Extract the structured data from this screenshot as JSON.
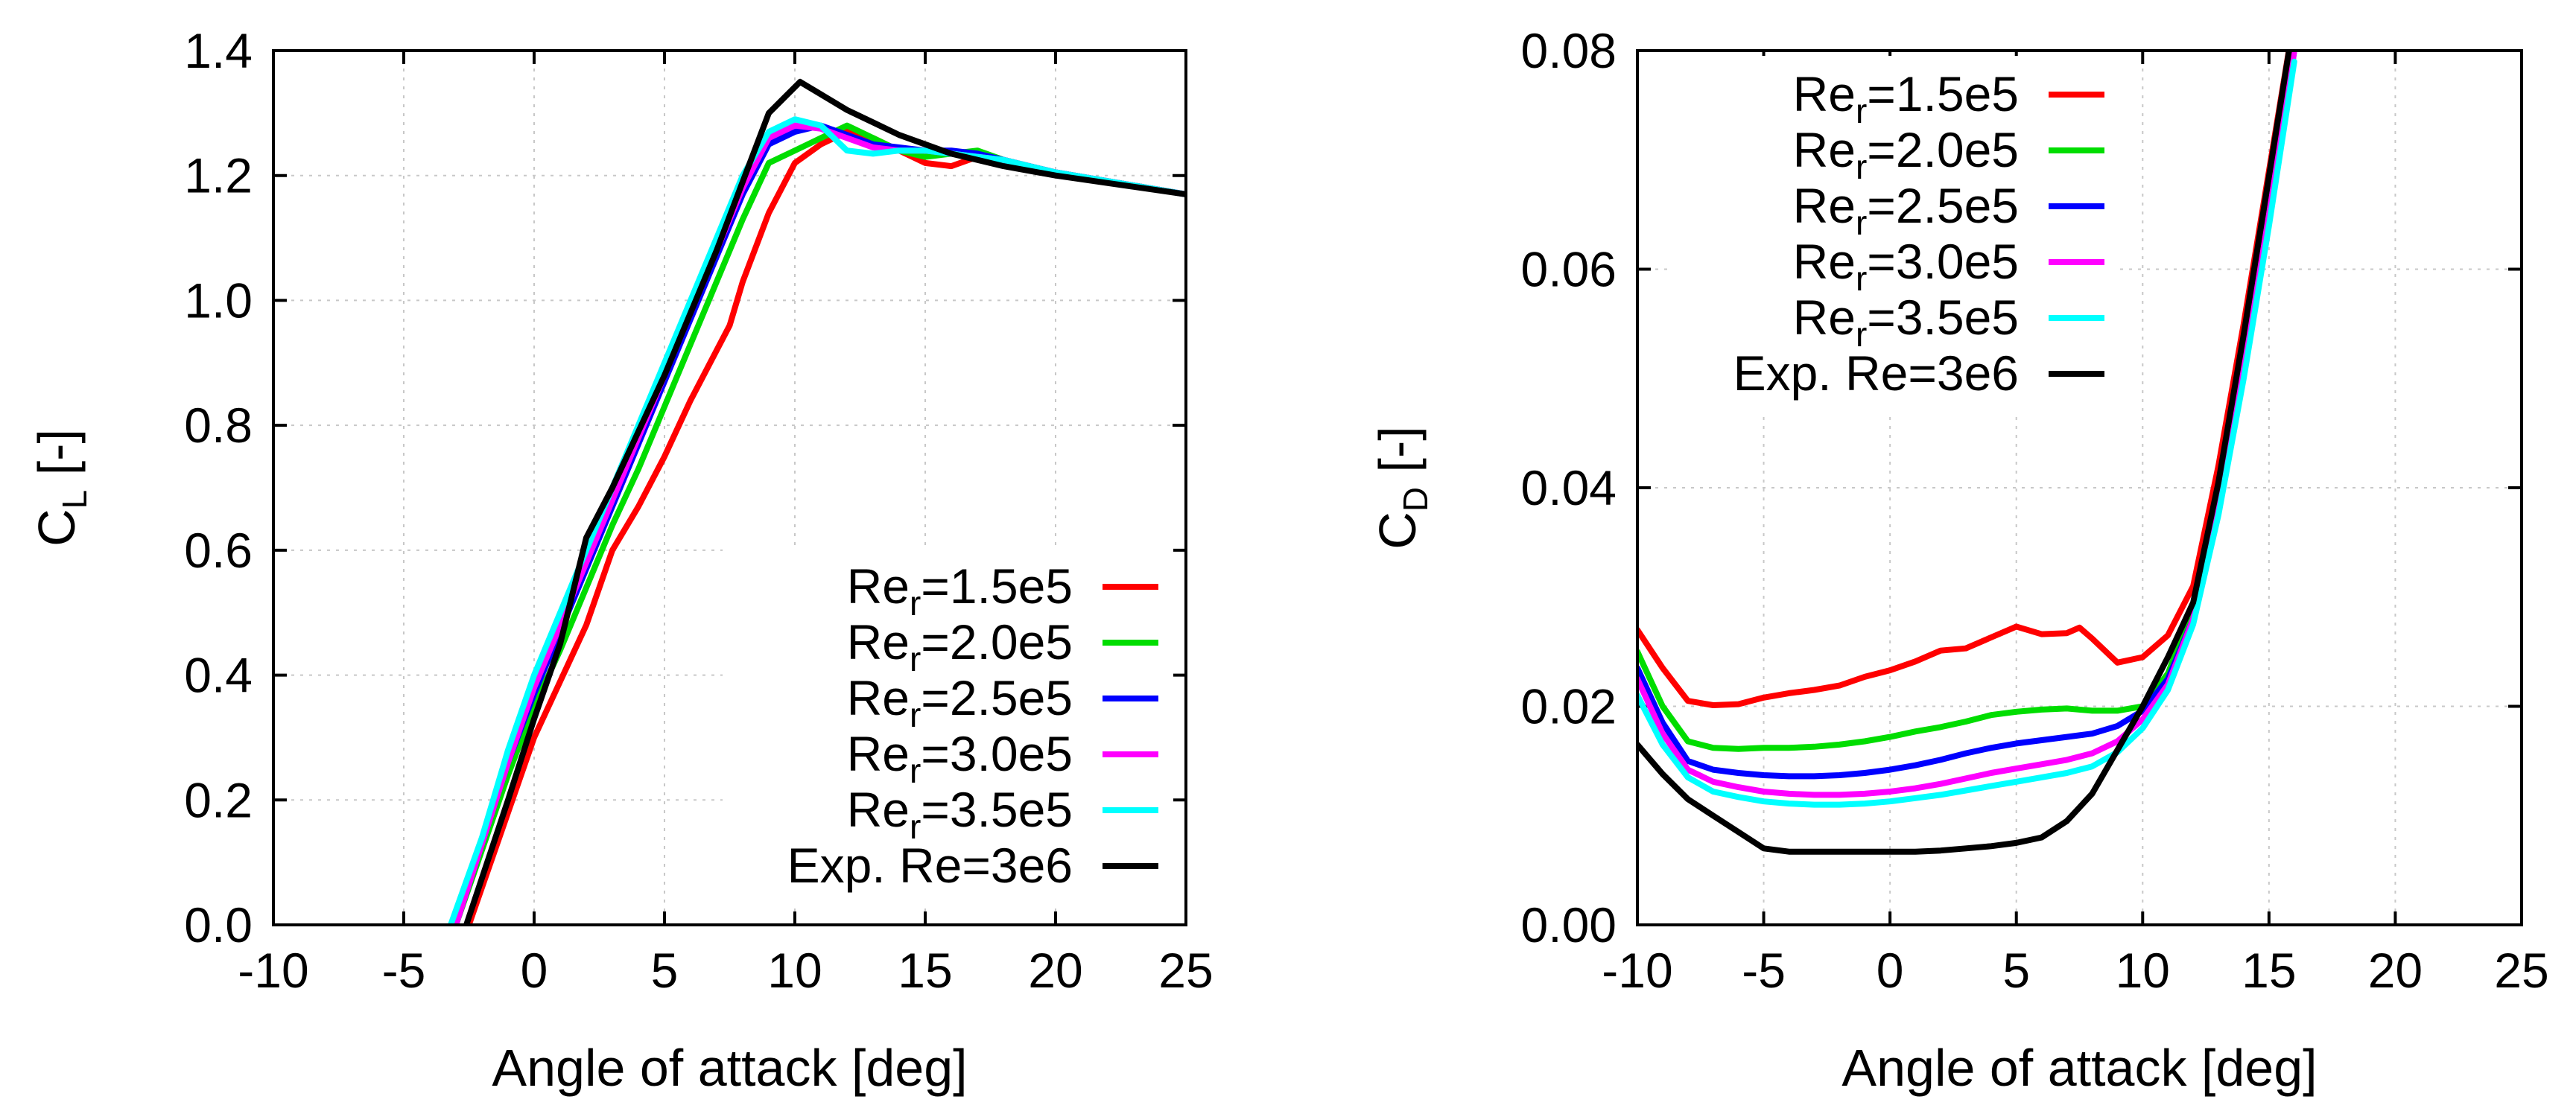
{
  "chart_data": [
    {
      "type": "line",
      "title": "",
      "ylabel_main": "C",
      "ylabel_sub": "L",
      "ylabel_unit": "[-]",
      "xlabel": "Angle of attack [deg]",
      "xlim": [
        -10,
        25
      ],
      "ylim": [
        0,
        1.4
      ],
      "xticks": [
        "-10",
        "-5",
        "0",
        "5",
        "10",
        "15",
        "20",
        "25"
      ],
      "yticks": [
        "0.0",
        "0.2",
        "0.4",
        "0.6",
        "0.8",
        "1.0",
        "1.2",
        "1.4"
      ],
      "grid": true,
      "legend_position": "bottom-right",
      "series": [
        {
          "name": "Re_r=1.5e5",
          "label_main": "Re",
          "label_sub": "r",
          "label_rest": "=1.5e5",
          "color": "#ff0000",
          "x": [
            -2.5,
            -1,
            0,
            1,
            2,
            3,
            4,
            5,
            6,
            7,
            7.5,
            8,
            9,
            10,
            11,
            12,
            13,
            14,
            15,
            16,
            17,
            18,
            20,
            25
          ],
          "y": [
            0.0,
            0.18,
            0.3,
            0.39,
            0.48,
            0.6,
            0.67,
            0.75,
            0.84,
            0.92,
            0.96,
            1.03,
            1.14,
            1.22,
            1.25,
            1.27,
            1.26,
            1.24,
            1.22,
            1.215,
            1.23,
            1.225,
            1.205,
            1.17
          ]
        },
        {
          "name": "Re_r=2.0e5",
          "label_main": "Re",
          "label_sub": "r",
          "label_rest": "=2.0e5",
          "color": "#00dd00",
          "x": [
            -3,
            -2,
            -1,
            0,
            1,
            2,
            3,
            4,
            5,
            6,
            7,
            8,
            9,
            10,
            11,
            12,
            13,
            14,
            15,
            16,
            17,
            18,
            20,
            25
          ],
          "y": [
            0.0,
            0.12,
            0.24,
            0.35,
            0.44,
            0.54,
            0.64,
            0.73,
            0.83,
            0.93,
            1.03,
            1.13,
            1.22,
            1.24,
            1.26,
            1.28,
            1.26,
            1.24,
            1.23,
            1.235,
            1.24,
            1.225,
            1.205,
            1.17
          ]
        },
        {
          "name": "Re_r=2.5e5",
          "label_main": "Re",
          "label_sub": "r",
          "label_rest": "=2.5e5",
          "color": "#0000ff",
          "x": [
            -3,
            -2,
            -1,
            0,
            1,
            2,
            3,
            4,
            5,
            6,
            7,
            8,
            9,
            10,
            11,
            12,
            13,
            14,
            15,
            16,
            17,
            18,
            20,
            25
          ],
          "y": [
            0.0,
            0.13,
            0.26,
            0.37,
            0.47,
            0.57,
            0.67,
            0.77,
            0.87,
            0.97,
            1.07,
            1.17,
            1.25,
            1.27,
            1.28,
            1.265,
            1.25,
            1.245,
            1.24,
            1.24,
            1.235,
            1.225,
            1.205,
            1.17
          ]
        },
        {
          "name": "Re_r=3.0e5",
          "label_main": "Re",
          "label_sub": "r",
          "label_rest": "=3.0e5",
          "color": "#ff00ff",
          "x": [
            -3,
            -2,
            -1,
            0,
            1,
            2,
            3,
            4,
            5,
            6,
            7,
            8,
            9,
            10,
            11,
            12,
            13,
            14,
            15,
            16,
            17,
            18,
            20,
            25
          ],
          "y": [
            0.0,
            0.13,
            0.26,
            0.38,
            0.48,
            0.58,
            0.68,
            0.78,
            0.88,
            0.98,
            1.08,
            1.18,
            1.26,
            1.28,
            1.275,
            1.26,
            1.245,
            1.24,
            1.24,
            1.235,
            1.23,
            1.225,
            1.205,
            1.17
          ]
        },
        {
          "name": "Re_r=3.5e5",
          "label_main": "Re",
          "label_sub": "r",
          "label_rest": "=3.5e5",
          "color": "#00ffff",
          "x": [
            -3.2,
            -2,
            -1,
            0,
            1,
            2,
            3,
            4,
            5,
            6,
            7,
            8,
            9,
            10,
            11,
            12,
            13,
            14,
            15,
            16,
            17,
            18,
            20,
            25
          ],
          "y": [
            0.0,
            0.14,
            0.28,
            0.4,
            0.5,
            0.6,
            0.7,
            0.8,
            0.9,
            1.0,
            1.1,
            1.2,
            1.27,
            1.29,
            1.28,
            1.24,
            1.235,
            1.24,
            1.24,
            1.235,
            1.23,
            1.225,
            1.205,
            1.17
          ]
        },
        {
          "name": "Exp. Re=3e6",
          "label_main": "Exp. Re=3e6",
          "label_sub": "",
          "label_rest": "",
          "color": "#000000",
          "x": [
            -2.6,
            -1,
            0,
            1,
            2,
            3,
            4,
            5,
            6,
            7,
            8,
            9,
            10.2,
            11,
            12,
            13,
            14,
            15,
            16,
            17,
            18,
            20,
            25
          ],
          "y": [
            0.0,
            0.2,
            0.33,
            0.45,
            0.62,
            0.7,
            0.79,
            0.88,
            0.98,
            1.08,
            1.19,
            1.3,
            1.35,
            1.33,
            1.305,
            1.285,
            1.265,
            1.25,
            1.235,
            1.225,
            1.215,
            1.2,
            1.17
          ]
        }
      ]
    },
    {
      "type": "line",
      "title": "",
      "ylabel_main": "C",
      "ylabel_sub": "D",
      "ylabel_unit": "[-]",
      "xlabel": "Angle of attack [deg]",
      "xlim": [
        -10,
        25
      ],
      "ylim": [
        0,
        0.08
      ],
      "xticks": [
        "-10",
        "-5",
        "0",
        "5",
        "10",
        "15",
        "20",
        "25"
      ],
      "yticks": [
        "0.00",
        "0.02",
        "0.04",
        "0.06",
        "0.08"
      ],
      "grid": true,
      "legend_position": "top-left",
      "series": [
        {
          "name": "Re_r=1.5e5",
          "label_main": "Re",
          "label_sub": "r",
          "label_rest": "=1.5e5",
          "color": "#ff0000",
          "x": [
            -10,
            -9,
            -8,
            -7,
            -6,
            -5,
            -4,
            -3,
            -2,
            -1,
            0,
            1,
            2,
            3,
            4,
            5,
            6,
            7,
            7.5,
            8,
            9,
            10,
            11,
            12,
            13,
            14,
            15,
            16
          ],
          "y": [
            0.027,
            0.0235,
            0.0205,
            0.0201,
            0.0202,
            0.0208,
            0.0212,
            0.0215,
            0.0219,
            0.0227,
            0.0233,
            0.0241,
            0.0251,
            0.0253,
            0.0263,
            0.0273,
            0.0266,
            0.0267,
            0.0272,
            0.0262,
            0.024,
            0.0245,
            0.0265,
            0.031,
            0.042,
            0.055,
            0.069,
            0.083
          ]
        },
        {
          "name": "Re_r=2.0e5",
          "label_main": "Re",
          "label_sub": "r",
          "label_rest": "=2.0e5",
          "color": "#00dd00",
          "x": [
            -10,
            -9,
            -8,
            -7,
            -6,
            -5,
            -4,
            -3,
            -2,
            -1,
            0,
            1,
            2,
            3,
            4,
            5,
            6,
            7,
            8,
            9,
            10,
            11,
            12,
            13,
            14,
            15,
            16
          ],
          "y": [
            0.025,
            0.02,
            0.0168,
            0.0162,
            0.0161,
            0.0162,
            0.0162,
            0.0163,
            0.0165,
            0.0168,
            0.0172,
            0.0177,
            0.0181,
            0.0186,
            0.0192,
            0.0195,
            0.0197,
            0.0198,
            0.0196,
            0.0196,
            0.02,
            0.023,
            0.029,
            0.04,
            0.053,
            0.067,
            0.081
          ]
        },
        {
          "name": "Re_r=2.5e5",
          "label_main": "Re",
          "label_sub": "r",
          "label_rest": "=2.5e5",
          "color": "#0000ff",
          "x": [
            -10,
            -9,
            -8,
            -7,
            -6,
            -5,
            -4,
            -3,
            -2,
            -1,
            0,
            1,
            2,
            3,
            4,
            5,
            6,
            7,
            8,
            9,
            10,
            11,
            12,
            13,
            14,
            15,
            16
          ],
          "y": [
            0.0235,
            0.0185,
            0.015,
            0.0142,
            0.0139,
            0.0137,
            0.0136,
            0.0136,
            0.0137,
            0.0139,
            0.0142,
            0.0146,
            0.0151,
            0.0157,
            0.0162,
            0.0166,
            0.0169,
            0.0172,
            0.0175,
            0.0182,
            0.0196,
            0.0225,
            0.028,
            0.038,
            0.051,
            0.065,
            0.08
          ]
        },
        {
          "name": "Re_r=3.0e5",
          "label_main": "Re",
          "label_sub": "r",
          "label_rest": "=3.0e5",
          "color": "#ff00ff",
          "x": [
            -10,
            -9,
            -8,
            -7,
            -6,
            -5,
            -4,
            -3,
            -2,
            -1,
            0,
            1,
            2,
            3,
            4,
            5,
            6,
            7,
            8,
            9,
            10,
            11,
            12,
            13,
            14,
            15,
            16
          ],
          "y": [
            0.0225,
            0.0175,
            0.0142,
            0.0131,
            0.0126,
            0.0122,
            0.012,
            0.0119,
            0.0119,
            0.012,
            0.0122,
            0.0125,
            0.0129,
            0.0134,
            0.0139,
            0.0143,
            0.0147,
            0.0151,
            0.0157,
            0.0168,
            0.0188,
            0.022,
            0.028,
            0.038,
            0.051,
            0.065,
            0.08
          ]
        },
        {
          "name": "Re_r=3.5e5",
          "label_main": "Re",
          "label_sub": "r",
          "label_rest": "=3.5e5",
          "color": "#00ffff",
          "x": [
            -10,
            -9,
            -8,
            -7,
            -6,
            -5,
            -4,
            -3,
            -2,
            -1,
            0,
            1,
            2,
            3,
            4,
            5,
            6,
            7,
            8,
            9,
            10,
            11,
            12,
            13,
            14,
            15,
            16
          ],
          "y": [
            0.021,
            0.0165,
            0.0135,
            0.0122,
            0.0117,
            0.0113,
            0.0111,
            0.011,
            0.011,
            0.0111,
            0.0113,
            0.0116,
            0.0119,
            0.0123,
            0.0127,
            0.0131,
            0.0135,
            0.0139,
            0.0145,
            0.0158,
            0.018,
            0.0215,
            0.0275,
            0.0375,
            0.05,
            0.064,
            0.079
          ]
        },
        {
          "name": "Exp. Re=3e6",
          "label_main": "Exp. Re=3e6",
          "label_sub": "",
          "label_rest": "",
          "color": "#000000",
          "x": [
            -10,
            -9,
            -8,
            -7,
            -6,
            -5,
            -4,
            -3,
            -2,
            -1,
            0,
            1,
            2,
            3,
            4,
            5,
            6,
            7,
            8,
            9,
            10,
            11,
            12,
            13,
            14,
            15,
            16
          ],
          "y": [
            0.0165,
            0.0138,
            0.0115,
            0.01,
            0.0085,
            0.007,
            0.0067,
            0.0067,
            0.0067,
            0.0067,
            0.0067,
            0.0067,
            0.0068,
            0.007,
            0.0072,
            0.0075,
            0.008,
            0.0095,
            0.012,
            0.016,
            0.02,
            0.0245,
            0.0295,
            0.0405,
            0.054,
            0.0685,
            0.083
          ]
        }
      ]
    }
  ]
}
